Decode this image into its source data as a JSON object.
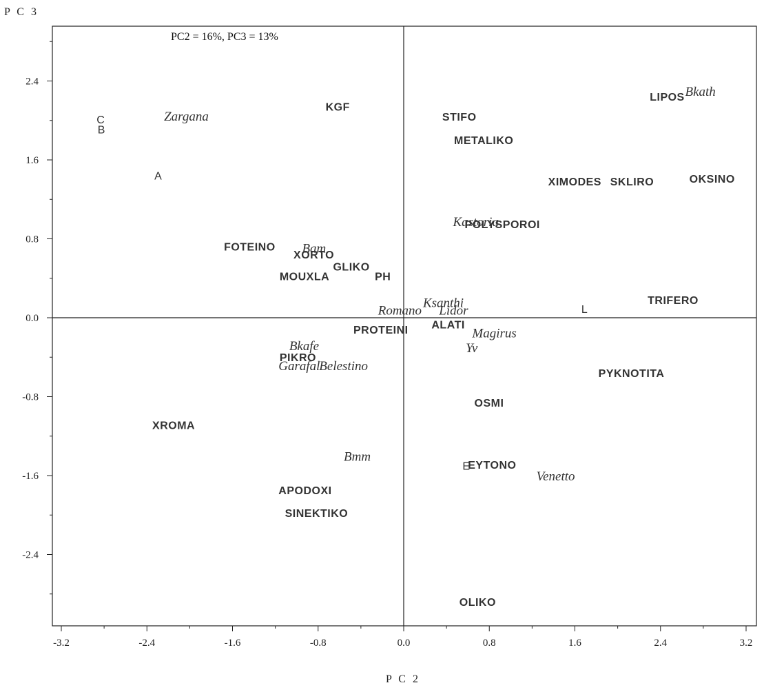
{
  "chart_data": {
    "type": "scatter",
    "subtitle": "PC2 = 16%, PC3 = 13%",
    "xlabel": "P C 2",
    "ylabel": "P C 3",
    "xlim": [
      -3.2,
      3.2
    ],
    "ylim": [
      -3.2,
      2.8
    ],
    "xticks": [
      "-3.2",
      "-2.4",
      "-1.6",
      "-0.8",
      "0.0",
      "0.8",
      "1.6",
      "2.4",
      "3.2"
    ],
    "yticks": [
      "2.4",
      "1.6",
      "0.8",
      "0.0",
      "-0.8",
      "-1.6",
      "-2.4"
    ],
    "series": [
      {
        "points": [
          {
            "label": "KGF",
            "x": -0.73,
            "y": 2.1
          },
          {
            "label": "STIFO",
            "x": 0.36,
            "y": 2.0
          },
          {
            "label": "METALIKO",
            "x": 0.47,
            "y": 1.76
          },
          {
            "label": "LIPOS",
            "x": 2.3,
            "y": 2.2
          },
          {
            "label": "XIMODES",
            "x": 1.35,
            "y": 1.34
          },
          {
            "label": "SKLIRO",
            "x": 1.93,
            "y": 1.34
          },
          {
            "label": "OKSINO",
            "x": 2.67,
            "y": 1.37
          },
          {
            "label": "POLYSPOROI",
            "x": 0.57,
            "y": 0.91
          },
          {
            "label": "FOTEINO",
            "x": -1.68,
            "y": 0.68
          },
          {
            "label": "XORTO",
            "x": -1.03,
            "y": 0.6
          },
          {
            "label": "GLIKO",
            "x": -0.66,
            "y": 0.48
          },
          {
            "label": "MOUXLA",
            "x": -1.16,
            "y": 0.38
          },
          {
            "label": "PH",
            "x": -0.27,
            "y": 0.38
          },
          {
            "label": "TRIFERO",
            "x": 2.28,
            "y": 0.14
          },
          {
            "label": "PROTEINI",
            "x": -0.47,
            "y": -0.16
          },
          {
            "label": "ALATI",
            "x": 0.26,
            "y": -0.11
          },
          {
            "label": "PIKRO",
            "x": -1.16,
            "y": -0.44
          },
          {
            "label": "PYKNOTITA",
            "x": 1.82,
            "y": -0.6
          },
          {
            "label": "OSMI",
            "x": 0.66,
            "y": -0.9
          },
          {
            "label": "XROMA",
            "x": -2.35,
            "y": -1.13
          },
          {
            "label": "EYTONO",
            "x": 0.6,
            "y": -1.53
          },
          {
            "label": "APODOXI",
            "x": -1.17,
            "y": -1.79
          },
          {
            "label": "SINEKTIKO",
            "x": -1.11,
            "y": -2.02
          },
          {
            "label": "OLIKO",
            "x": 0.52,
            "y": -2.92
          }
        ]
      },
      {
        "points": [
          {
            "label": "Zargana",
            "x": -2.24,
            "y": 2.0
          },
          {
            "label": "Bkath",
            "x": 2.63,
            "y": 2.25
          },
          {
            "label": "Kastoria",
            "x": 0.46,
            "y": 0.93
          },
          {
            "label": "Bam",
            "x": -0.95,
            "y": 0.66
          },
          {
            "label": "Ksanthi",
            "x": 0.18,
            "y": 0.11
          },
          {
            "label": "Romano",
            "x": -0.24,
            "y": 0.03
          },
          {
            "label": "Lidor",
            "x": 0.33,
            "y": 0.03
          },
          {
            "label": "Magirus",
            "x": 0.64,
            "y": -0.2
          },
          {
            "label": "Yv",
            "x": 0.58,
            "y": -0.35
          },
          {
            "label": "Bkafe",
            "x": -1.07,
            "y": -0.33
          },
          {
            "label": "Garafal",
            "x": -1.17,
            "y": -0.53
          },
          {
            "label": "Belestino",
            "x": -0.79,
            "y": -0.53
          },
          {
            "label": "Bmm",
            "x": -0.56,
            "y": -1.45
          },
          {
            "label": "Venetto",
            "x": 1.24,
            "y": -1.65
          }
        ]
      },
      {
        "points": [
          {
            "label": "C",
            "x": -2.87,
            "y": 1.97
          },
          {
            "label": "B",
            "x": -2.86,
            "y": 1.87
          },
          {
            "label": "A",
            "x": -2.33,
            "y": 1.4
          },
          {
            "label": "L",
            "x": 1.66,
            "y": 0.05
          },
          {
            "label": "E",
            "x": 0.55,
            "y": -1.54
          }
        ]
      }
    ]
  }
}
